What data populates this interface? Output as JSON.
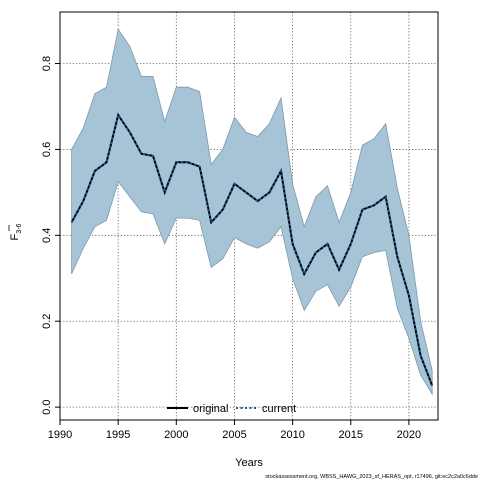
{
  "chart_data": {
    "type": "line",
    "xlabel": "Years",
    "ylabel": "F",
    "ylabel_sub": "3-6",
    "xlim": [
      1990,
      2022.5
    ],
    "ylim": [
      -0.03,
      0.92
    ],
    "x_ticks": [
      1990,
      1995,
      2000,
      2005,
      2010,
      2015,
      2020
    ],
    "y_ticks": [
      0.0,
      0.2,
      0.4,
      0.6,
      0.8
    ],
    "x_tick_labels": [
      "1990",
      "1995",
      "2000",
      "2005",
      "2010",
      "2015",
      "2020"
    ],
    "y_tick_labels": [
      "0.0",
      "0.2",
      "0.4",
      "0.6",
      "0.8"
    ],
    "grid": true,
    "legend_position": "bottom-center",
    "legend": [
      {
        "label": "original",
        "color": "#000000",
        "style": "solid"
      },
      {
        "label": "current",
        "color": "#1a5a9a",
        "style": "dotted"
      }
    ],
    "band_color": "#a6c4d6",
    "band_edge_color": "#7a9aac",
    "x": [
      1991,
      1992,
      1993,
      1994,
      1995,
      1996,
      1997,
      1998,
      1999,
      2000,
      2001,
      2002,
      2003,
      2004,
      2005,
      2006,
      2007,
      2008,
      2009,
      2010,
      2011,
      2012,
      2013,
      2014,
      2015,
      2016,
      2017,
      2018,
      2019,
      2020,
      2021,
      2022
    ],
    "series": [
      {
        "name": "original",
        "values": [
          0.43,
          0.48,
          0.55,
          0.57,
          0.68,
          0.64,
          0.59,
          0.585,
          0.5,
          0.57,
          0.57,
          0.56,
          0.43,
          0.46,
          0.52,
          0.5,
          0.48,
          0.5,
          0.55,
          0.38,
          0.31,
          0.36,
          0.38,
          0.32,
          0.38,
          0.46,
          0.47,
          0.49,
          0.35,
          0.26,
          0.12,
          0.05
        ]
      },
      {
        "name": "current",
        "values": [
          0.43,
          0.48,
          0.55,
          0.57,
          0.68,
          0.64,
          0.59,
          0.585,
          0.5,
          0.57,
          0.57,
          0.56,
          0.43,
          0.46,
          0.52,
          0.5,
          0.48,
          0.5,
          0.55,
          0.38,
          0.31,
          0.36,
          0.38,
          0.32,
          0.38,
          0.46,
          0.47,
          0.49,
          0.35,
          0.26,
          0.12,
          0.05
        ]
      }
    ],
    "upper": [
      0.6,
      0.65,
      0.73,
      0.745,
      0.88,
      0.84,
      0.77,
      0.77,
      0.665,
      0.745,
      0.745,
      0.735,
      0.565,
      0.6,
      0.675,
      0.64,
      0.63,
      0.66,
      0.72,
      0.52,
      0.42,
      0.49,
      0.515,
      0.43,
      0.5,
      0.61,
      0.625,
      0.66,
      0.51,
      0.4,
      0.2,
      0.085
    ],
    "lower": [
      0.31,
      0.37,
      0.42,
      0.435,
      0.525,
      0.49,
      0.455,
      0.45,
      0.38,
      0.44,
      0.44,
      0.435,
      0.325,
      0.345,
      0.395,
      0.38,
      0.37,
      0.385,
      0.42,
      0.3,
      0.225,
      0.27,
      0.285,
      0.235,
      0.28,
      0.35,
      0.36,
      0.365,
      0.23,
      0.16,
      0.075,
      0.03
    ]
  },
  "footer": "stockassessment.org, WBSS_HAWG_2023_sf_HERAS_opt, r17496, git:ec2c2a0c6dde"
}
